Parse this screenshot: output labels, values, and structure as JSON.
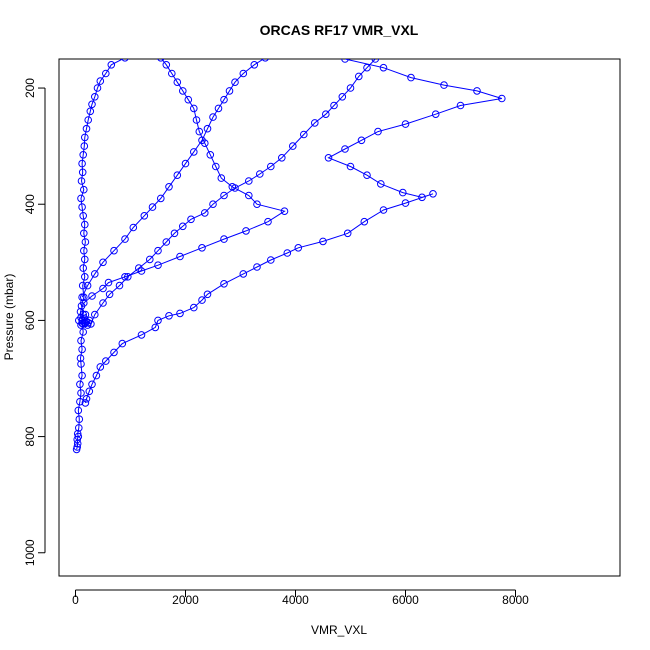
{
  "chart_data": {
    "type": "line",
    "title": "ORCAS RF17 VMR_VXL",
    "xlabel": "VMR_VXL",
    "ylabel": "Pressure (mbar)",
    "xlim": [
      -300,
      9900
    ],
    "ylim": [
      1040,
      150
    ],
    "y_reversed": true,
    "x_ticks": [
      0,
      2000,
      4000,
      6000,
      8000
    ],
    "x_tick_labels": [
      "0",
      "2000",
      "4000",
      "6000",
      "8000"
    ],
    "y_ticks": [
      200,
      400,
      600,
      800,
      1000
    ],
    "y_tick_labels": [
      "200",
      "400",
      "600",
      "800",
      "1000"
    ],
    "grid": false,
    "legend": "none",
    "color": "#0000ff",
    "marker": "open-circle",
    "series": [
      {
        "points": [
          [
            20,
            822
          ],
          [
            30,
            818
          ],
          [
            40,
            812
          ],
          [
            30,
            805
          ],
          [
            50,
            800
          ],
          [
            40,
            795
          ],
          [
            60,
            785
          ],
          [
            70,
            770
          ],
          [
            50,
            755
          ],
          [
            80,
            740
          ],
          [
            100,
            725
          ],
          [
            80,
            710
          ],
          [
            120,
            695
          ],
          [
            100,
            675
          ],
          [
            90,
            665
          ],
          [
            120,
            650
          ],
          [
            100,
            635
          ],
          [
            140,
            620
          ],
          [
            120,
            605
          ],
          [
            140,
            590
          ],
          [
            110,
            575
          ],
          [
            150,
            560
          ],
          [
            130,
            540
          ],
          [
            170,
            525
          ],
          [
            140,
            510
          ],
          [
            170,
            495
          ],
          [
            150,
            480
          ],
          [
            180,
            465
          ],
          [
            150,
            450
          ],
          [
            170,
            435
          ],
          [
            140,
            420
          ],
          [
            120,
            405
          ],
          [
            100,
            390
          ],
          [
            150,
            375
          ],
          [
            110,
            360
          ],
          [
            130,
            345
          ],
          [
            120,
            330
          ],
          [
            140,
            315
          ],
          [
            160,
            300
          ],
          [
            170,
            285
          ],
          [
            200,
            270
          ],
          [
            230,
            255
          ],
          [
            270,
            240
          ],
          [
            300,
            228
          ],
          [
            350,
            215
          ],
          [
            400,
            200
          ],
          [
            450,
            188
          ],
          [
            550,
            175
          ],
          [
            650,
            160
          ],
          [
            900,
            148
          ]
        ]
      },
      {
        "points": [
          [
            180,
            742
          ],
          [
            200,
            735
          ],
          [
            250,
            722
          ],
          [
            300,
            710
          ],
          [
            380,
            695
          ],
          [
            450,
            680
          ],
          [
            550,
            670
          ],
          [
            700,
            655
          ],
          [
            850,
            640
          ],
          [
            1200,
            625
          ],
          [
            1450,
            612
          ],
          [
            1500,
            600
          ],
          [
            1700,
            592
          ],
          [
            1900,
            588
          ],
          [
            2150,
            578
          ],
          [
            2300,
            565
          ],
          [
            2400,
            555
          ],
          [
            2700,
            537
          ],
          [
            3050,
            520
          ],
          [
            3300,
            508
          ],
          [
            3550,
            496
          ],
          [
            3850,
            484
          ],
          [
            4050,
            475
          ],
          [
            4500,
            464
          ],
          [
            4950,
            450
          ],
          [
            5250,
            430
          ],
          [
            5600,
            410
          ],
          [
            6000,
            398
          ],
          [
            6500,
            382
          ],
          [
            6300,
            388
          ],
          [
            5950,
            380
          ],
          [
            5550,
            365
          ],
          [
            5300,
            350
          ],
          [
            5000,
            335
          ],
          [
            4600,
            320
          ],
          [
            4900,
            305
          ],
          [
            5200,
            290
          ],
          [
            5500,
            275
          ],
          [
            6000,
            262
          ],
          [
            6550,
            245
          ],
          [
            7000,
            230
          ],
          [
            7750,
            218
          ],
          [
            7300,
            205
          ],
          [
            6700,
            195
          ],
          [
            6100,
            182
          ],
          [
            5600,
            165
          ],
          [
            4900,
            150
          ]
        ]
      },
      {
        "points": [
          [
            60,
            600
          ],
          [
            100,
            595
          ],
          [
            180,
            590
          ],
          [
            250,
            600
          ],
          [
            220,
            608
          ],
          [
            180,
            605
          ],
          [
            120,
            600
          ],
          [
            90,
            585
          ],
          [
            150,
            570
          ],
          [
            300,
            558
          ],
          [
            500,
            545
          ],
          [
            600,
            535
          ],
          [
            900,
            525
          ],
          [
            1200,
            515
          ],
          [
            1500,
            505
          ],
          [
            1900,
            490
          ],
          [
            2300,
            475
          ],
          [
            2700,
            460
          ],
          [
            3100,
            446
          ],
          [
            3500,
            430
          ],
          [
            3800,
            412
          ],
          [
            3300,
            400
          ],
          [
            3150,
            385
          ],
          [
            2850,
            370
          ],
          [
            2650,
            355
          ],
          [
            2550,
            335
          ],
          [
            2450,
            315
          ],
          [
            2350,
            295
          ],
          [
            2250,
            275
          ],
          [
            2200,
            255
          ],
          [
            2150,
            235
          ],
          [
            2050,
            220
          ],
          [
            1950,
            205
          ],
          [
            1850,
            190
          ],
          [
            1750,
            175
          ],
          [
            1650,
            160
          ],
          [
            1550,
            148
          ]
        ]
      },
      {
        "points": [
          [
            100,
            608
          ],
          [
            140,
            606
          ],
          [
            170,
            604
          ],
          [
            190,
            602
          ],
          [
            230,
            604
          ],
          [
            280,
            606
          ],
          [
            350,
            590
          ],
          [
            500,
            570
          ],
          [
            620,
            555
          ],
          [
            800,
            540
          ],
          [
            950,
            525
          ],
          [
            1150,
            510
          ],
          [
            1350,
            495
          ],
          [
            1500,
            480
          ],
          [
            1650,
            465
          ],
          [
            1800,
            450
          ],
          [
            1950,
            438
          ],
          [
            2100,
            426
          ],
          [
            2350,
            415
          ],
          [
            2500,
            400
          ],
          [
            2700,
            385
          ],
          [
            2900,
            372
          ],
          [
            3150,
            360
          ],
          [
            3350,
            348
          ],
          [
            3550,
            335
          ],
          [
            3750,
            320
          ],
          [
            3950,
            300
          ],
          [
            4150,
            280
          ],
          [
            4350,
            260
          ],
          [
            4550,
            245
          ],
          [
            4700,
            230
          ],
          [
            4850,
            215
          ],
          [
            5000,
            200
          ],
          [
            5150,
            180
          ],
          [
            5300,
            165
          ],
          [
            5450,
            150
          ]
        ]
      },
      {
        "points": [
          [
            120,
            560
          ],
          [
            220,
            540
          ],
          [
            350,
            520
          ],
          [
            500,
            500
          ],
          [
            700,
            480
          ],
          [
            900,
            460
          ],
          [
            1050,
            440
          ],
          [
            1250,
            420
          ],
          [
            1400,
            405
          ],
          [
            1550,
            390
          ],
          [
            1700,
            370
          ],
          [
            1850,
            350
          ],
          [
            2000,
            330
          ],
          [
            2150,
            310
          ],
          [
            2300,
            290
          ],
          [
            2400,
            270
          ],
          [
            2500,
            250
          ],
          [
            2600,
            235
          ],
          [
            2700,
            220
          ],
          [
            2800,
            205
          ],
          [
            2900,
            190
          ],
          [
            3050,
            175
          ],
          [
            3250,
            160
          ],
          [
            3450,
            148
          ]
        ]
      }
    ]
  }
}
